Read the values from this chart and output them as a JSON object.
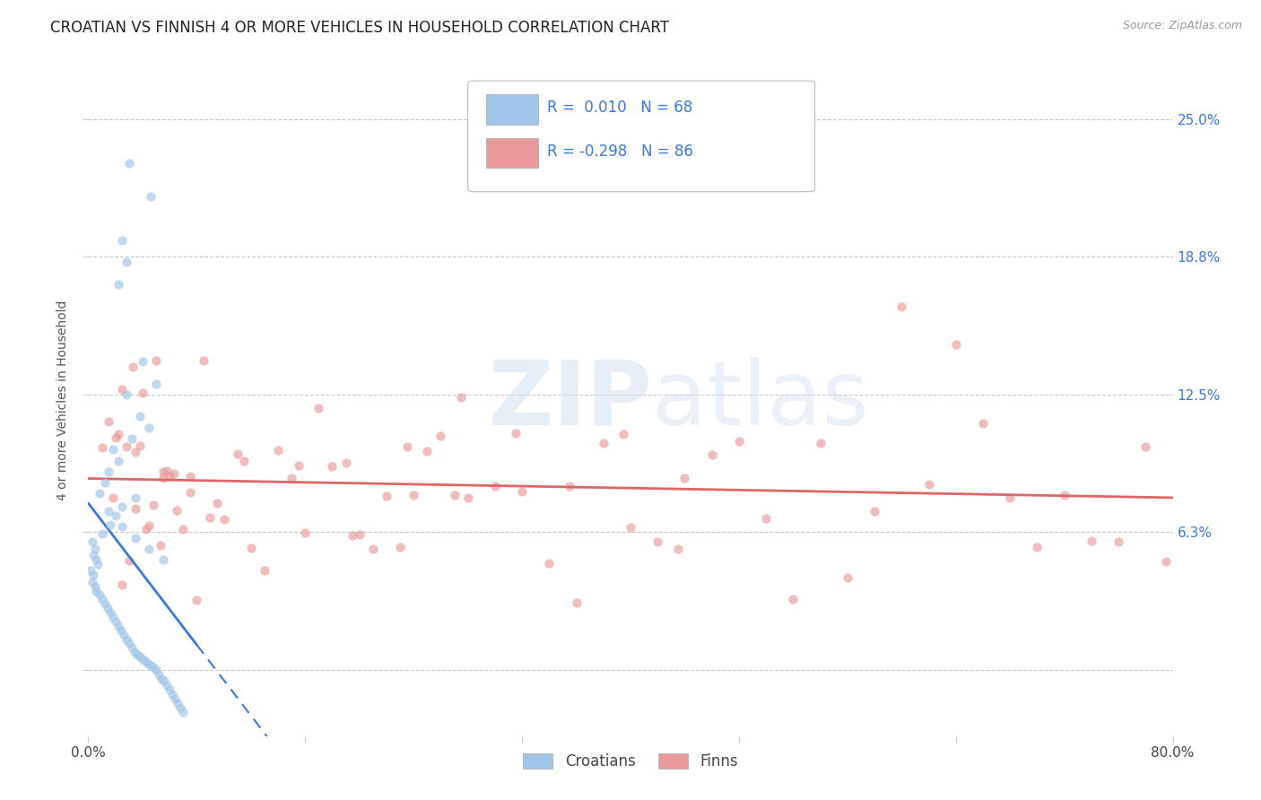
{
  "title": "CROATIAN VS FINNISH 4 OR MORE VEHICLES IN HOUSEHOLD CORRELATION CHART",
  "source": "Source: ZipAtlas.com",
  "ylabel": "4 or more Vehicles in Household",
  "xlim": [
    0.0,
    0.8
  ],
  "ylim": [
    -0.03,
    0.275
  ],
  "xtick_positions": [
    0.0,
    0.16,
    0.32,
    0.48,
    0.64,
    0.8
  ],
  "xticklabels": [
    "0.0%",
    "",
    "",
    "",
    "",
    "80.0%"
  ],
  "ytick_positions": [
    0.0,
    0.0625,
    0.125,
    0.1875,
    0.25
  ],
  "yticklabels_right": [
    "",
    "6.3%",
    "12.5%",
    "18.8%",
    "25.0%"
  ],
  "croatian_color": "#9fc5e8",
  "finnish_color": "#ea9999",
  "croatian_line_color": "#3c78d8",
  "finnish_line_color": "#e06666",
  "watermark_zip": "ZIP",
  "watermark_atlas": "atlas",
  "legend_R_croatian": " 0.010",
  "legend_N_croatian": "68",
  "legend_R_finnish": "-0.298",
  "legend_N_finnish": "86",
  "grid_color": "#bbbbbb",
  "background_color": "#ffffff",
  "title_fontsize": 12,
  "axis_label_fontsize": 10,
  "tick_fontsize": 11,
  "scatter_size": 55,
  "scatter_alpha": 0.65,
  "right_label_color": "#3c78d8"
}
